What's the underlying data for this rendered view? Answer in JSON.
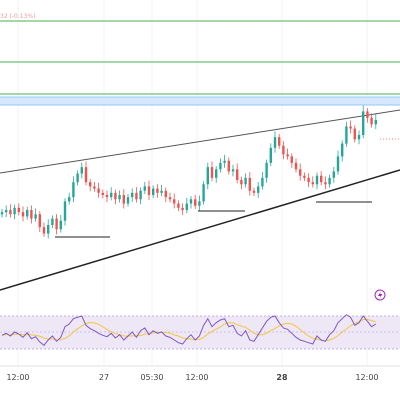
{
  "price_header": "32 (-0.13%)",
  "chart_data": {
    "type": "candlestick",
    "xaxis_ticks": [
      "12:00",
      "27",
      "05:30",
      "12:00",
      "28",
      "12:00"
    ],
    "colors": {
      "up": "#26a69a",
      "down": "#ef5350",
      "rsi_line": "#7e57c2",
      "rsi_ma": "#f4c542",
      "level_green": "#4caf50",
      "level_blue": "#90caf9",
      "trendline": "#222222"
    },
    "closes": [
      70,
      71,
      69,
      72,
      70,
      68,
      71,
      67,
      69,
      63,
      60,
      64,
      67,
      62,
      66,
      75,
      77,
      84,
      88,
      91,
      84,
      82,
      81,
      79,
      78,
      77,
      79,
      76,
      78,
      74,
      77,
      79,
      76,
      80,
      82,
      78,
      81,
      79,
      80,
      77,
      76,
      74,
      72,
      71,
      74,
      76,
      73,
      75,
      83,
      91,
      86,
      90,
      93,
      94,
      89,
      90,
      85,
      83,
      86,
      80,
      79,
      82,
      86,
      93,
      100,
      105,
      101,
      97,
      96,
      93,
      90,
      87,
      86,
      84,
      83,
      87,
      84,
      83,
      86,
      89,
      96,
      102,
      110,
      109,
      104,
      106,
      117,
      114,
      111,
      113
    ],
    "rsi_values": [
      45,
      48,
      44,
      50,
      47,
      42,
      49,
      40,
      43,
      35,
      30,
      38,
      44,
      36,
      42,
      58,
      62,
      70,
      72,
      74,
      60,
      55,
      52,
      48,
      45,
      43,
      48,
      41,
      46,
      38,
      44,
      50,
      42,
      52,
      56,
      46,
      52,
      48,
      50,
      44,
      42,
      38,
      34,
      32,
      40,
      46,
      38,
      44,
      60,
      70,
      58,
      64,
      68,
      70,
      58,
      60,
      48,
      44,
      52,
      38,
      36,
      46,
      56,
      66,
      72,
      74,
      64,
      56,
      54,
      48,
      42,
      38,
      36,
      34,
      32,
      44,
      38,
      36,
      46,
      52,
      64,
      70,
      76,
      72,
      60,
      64,
      74,
      66,
      58,
      62
    ]
  }
}
